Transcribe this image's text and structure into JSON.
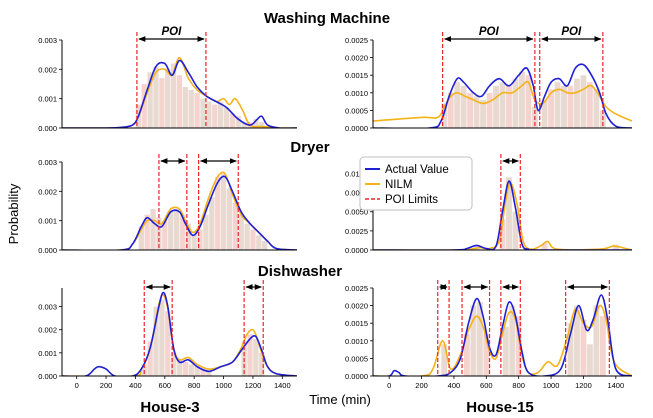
{
  "figure": {
    "row_titles": [
      "Washing Machine",
      "Dryer",
      "Dishwasher"
    ],
    "column_labels": [
      "House-3",
      "House-15"
    ],
    "xlabel": "Time (min)",
    "ylabel": "Probability",
    "poi_label": "POI",
    "legend": {
      "entries": [
        {
          "label": "Actual Value",
          "color": "#1f1fd6",
          "style": "line"
        },
        {
          "label": "NILM",
          "color": "#f5b21a",
          "style": "line"
        },
        {
          "label": "POI Limits",
          "color": "#e8262a",
          "style": "dashed"
        }
      ],
      "placement": "center, between Dryer panels"
    },
    "colors": {
      "actual": "#1f1fd6",
      "nilm": "#f5b21a",
      "poi": "#e8262a",
      "bars": "#e2cfc6",
      "bars_alt": "#f3c9c4"
    }
  },
  "chart_data": [
    {
      "type": "line",
      "title": "Washing Machine",
      "house": "House-3",
      "xlim": [
        -100,
        1500
      ],
      "ylim": [
        0,
        0.003
      ],
      "xticks": [],
      "yticks": [
        "0.000",
        "0.001",
        "0.002",
        "0.003"
      ],
      "poi": [
        [
          410,
          880
        ]
      ],
      "poi_labeled": true,
      "histogram": {
        "x": [
          420,
          460,
          500,
          540,
          580,
          620,
          660,
          700,
          740,
          780,
          820,
          860,
          900,
          940,
          980,
          1020,
          1060,
          1100,
          1140,
          1180,
          1220,
          1260
        ],
        "values": [
          0.0008,
          0.0015,
          0.0019,
          0.0021,
          0.0017,
          0.002,
          0.0022,
          0.0018,
          0.0014,
          0.0013,
          0.0012,
          0.001,
          0.0009,
          0.0008,
          0.0009,
          0.0007,
          0.0005,
          0.0004,
          0.0002,
          0.0002,
          0.0003,
          0.0002
        ]
      },
      "series": [
        {
          "name": "Actual Value",
          "x": [
            -100,
            200,
            300,
            380,
            420,
            480,
            540,
            600,
            650,
            700,
            760,
            820,
            880,
            950,
            1020,
            1100,
            1180,
            1230,
            1260,
            1300,
            1380,
            1500
          ],
          "y": [
            0,
            0,
            2e-05,
            0.0001,
            0.0004,
            0.0013,
            0.0021,
            0.0022,
            0.0018,
            0.0023,
            0.0019,
            0.0014,
            0.0011,
            0.0009,
            0.0007,
            0.0003,
            0.0001,
            0.0003,
            0.0004,
            0.0001,
            0,
            0
          ]
        },
        {
          "name": "NILM",
          "x": [
            -100,
            200,
            300,
            380,
            420,
            480,
            540,
            600,
            650,
            700,
            760,
            820,
            880,
            950,
            1000,
            1040,
            1080,
            1130,
            1180,
            1260,
            1380,
            1500
          ],
          "y": [
            0,
            0,
            2e-05,
            0.0001,
            0.0004,
            0.0012,
            0.0019,
            0.002,
            0.0018,
            0.0024,
            0.0017,
            0.0013,
            0.0011,
            0.0009,
            0.001,
            0.0008,
            0.001,
            0.0006,
            0.0001,
            5e-05,
            0,
            0
          ]
        }
      ]
    },
    {
      "type": "line",
      "title": "Washing Machine",
      "house": "House-15",
      "xlim": [
        -100,
        1500
      ],
      "ylim": [
        0,
        0.0025
      ],
      "xticks": [],
      "yticks": [
        "0.0000",
        "0.0005",
        "0.0010",
        "0.0015",
        "0.0020",
        "0.0025"
      ],
      "poi": [
        [
          330,
          900
        ],
        [
          930,
          1320
        ]
      ],
      "poi_labeled": true,
      "histogram": {
        "x": [
          340,
          380,
          420,
          460,
          500,
          540,
          580,
          620,
          660,
          700,
          740,
          780,
          820,
          860,
          900,
          960,
          1000,
          1040,
          1080,
          1120,
          1160,
          1200,
          1240,
          1280,
          1320
        ],
        "values": [
          0.0007,
          0.001,
          0.0013,
          0.0012,
          0.001,
          0.0009,
          0.0008,
          0.001,
          0.0012,
          0.0013,
          0.0012,
          0.0014,
          0.0016,
          0.0015,
          0.0006,
          0.0008,
          0.0011,
          0.0013,
          0.0012,
          0.0012,
          0.0014,
          0.0015,
          0.0013,
          0.0011,
          0.0005
        ]
      },
      "series": [
        {
          "name": "Actual Value",
          "x": [
            -100,
            250,
            320,
            370,
            420,
            460,
            520,
            570,
            620,
            680,
            740,
            800,
            850,
            890,
            920,
            960,
            1000,
            1050,
            1100,
            1150,
            1200,
            1250,
            1300,
            1340,
            1400,
            1500
          ],
          "y": [
            0,
            0,
            0.0002,
            0.0009,
            0.0014,
            0.0013,
            0.001,
            0.0009,
            0.0012,
            0.0014,
            0.0012,
            0.0015,
            0.0017,
            0.0012,
            0.0005,
            0.0009,
            0.0013,
            0.0014,
            0.0012,
            0.0017,
            0.0018,
            0.0015,
            0.001,
            0.0004,
            5e-05,
            0
          ]
        },
        {
          "name": "NILM",
          "x": [
            -100,
            200,
            300,
            340,
            380,
            420,
            470,
            520,
            580,
            640,
            700,
            760,
            820,
            860,
            900,
            950,
            1000,
            1050,
            1100,
            1150,
            1200,
            1250,
            1300,
            1340,
            1400,
            1500
          ],
          "y": [
            0.0002,
            0.0003,
            0.0003,
            0.0006,
            0.0009,
            0.001,
            0.0009,
            0.0008,
            0.0007,
            0.0008,
            0.001,
            0.001,
            0.0012,
            0.0013,
            0.0008,
            0.0007,
            0.001,
            0.0011,
            0.001,
            0.001,
            0.0011,
            0.0012,
            0.0009,
            0.0006,
            0.0004,
            0.0002
          ]
        }
      ]
    },
    {
      "type": "line",
      "title": "Dryer",
      "house": "House-3",
      "xlim": [
        -100,
        1500
      ],
      "ylim": [
        0,
        0.003
      ],
      "xticks": [],
      "yticks": [
        "0.000",
        "0.001",
        "0.002",
        "0.003"
      ],
      "poi": [
        [
          560,
          750
        ],
        [
          830,
          1100
        ]
      ],
      "poi_labeled": false,
      "histogram": {
        "x": [
          440,
          480,
          520,
          560,
          600,
          640,
          680,
          720,
          760,
          800,
          840,
          880,
          920,
          960,
          1000,
          1040,
          1080,
          1120,
          1160,
          1200,
          1240,
          1280
        ],
        "values": [
          0.0008,
          0.0012,
          0.0014,
          0.0011,
          0.001,
          0.0013,
          0.0014,
          0.0012,
          0.0009,
          0.0005,
          0.0007,
          0.0012,
          0.0018,
          0.0025,
          0.0026,
          0.0021,
          0.0016,
          0.0012,
          0.0009,
          0.0007,
          0.0005,
          0.0003
        ]
      },
      "series": [
        {
          "name": "Actual Value",
          "x": [
            -100,
            300,
            380,
            440,
            480,
            530,
            580,
            640,
            700,
            740,
            790,
            840,
            900,
            960,
            1010,
            1060,
            1120,
            1180,
            1240,
            1300,
            1360,
            1500
          ],
          "y": [
            0,
            0,
            0.0002,
            0.0008,
            0.0011,
            0.0009,
            0.0008,
            0.0013,
            0.0013,
            0.0009,
            0.0005,
            0.0008,
            0.0016,
            0.0023,
            0.0025,
            0.002,
            0.0013,
            0.0009,
            0.0006,
            0.0003,
            5e-05,
            0
          ]
        },
        {
          "name": "NILM",
          "x": [
            -100,
            300,
            380,
            440,
            480,
            530,
            580,
            640,
            700,
            740,
            790,
            840,
            900,
            960,
            1010,
            1060,
            1120,
            1180,
            1240,
            1300,
            1360,
            1500
          ],
          "y": [
            0,
            0,
            0.0002,
            0.0007,
            0.001,
            0.001,
            0.0009,
            0.0014,
            0.0014,
            0.001,
            0.0006,
            0.0009,
            0.0018,
            0.0025,
            0.0026,
            0.0019,
            0.0012,
            0.0009,
            0.0006,
            0.0003,
            5e-05,
            0
          ]
        }
      ]
    },
    {
      "type": "line",
      "title": "Dryer",
      "house": "House-15",
      "xlim": [
        -100,
        1500
      ],
      "ylim": [
        0,
        0.0115
      ],
      "xticks": [],
      "yticks": [
        "0.0000",
        "0.0025",
        "0.0050",
        "0.0075",
        "0.0100"
      ],
      "poi": [
        [
          690,
          810
        ]
      ],
      "poi_labeled": false,
      "histogram": {
        "x": [
          540,
          700,
          740,
          780,
          960,
          1400
        ],
        "values": [
          0.0005,
          0.004,
          0.0095,
          0.005,
          0.0009,
          0.0007
        ]
      },
      "series": [
        {
          "name": "Actual Value",
          "x": [
            -100,
            400,
            480,
            540,
            600,
            660,
            700,
            740,
            780,
            820,
            860,
            920,
            1500
          ],
          "y": [
            0,
            0,
            0.0002,
            0.0006,
            0.0002,
            0.0005,
            0.005,
            0.009,
            0.0055,
            0.0008,
            0.0001,
            0,
            0
          ]
        },
        {
          "name": "NILM",
          "x": [
            -100,
            400,
            500,
            560,
            620,
            680,
            720,
            750,
            790,
            830,
            880,
            940,
            980,
            1040,
            1300,
            1380,
            1420,
            1500
          ],
          "y": [
            0,
            0,
            0.0001,
            0.0003,
            0.0002,
            0.0012,
            0.0065,
            0.0088,
            0.006,
            0.001,
            0.0001,
            0.0006,
            0.0011,
            0.0001,
            0.0001,
            0.0005,
            0.0004,
            0
          ]
        }
      ]
    },
    {
      "type": "line",
      "title": "Dishwasher",
      "house": "House-3",
      "xlim": [
        -100,
        1500
      ],
      "ylim": [
        0,
        0.0038
      ],
      "xticks": [
        "0",
        "200",
        "400",
        "600",
        "800",
        "1000",
        "1200",
        "1400"
      ],
      "yticks": [
        "0.000",
        "0.001",
        "0.002",
        "0.003"
      ],
      "poi": [
        [
          460,
          650
        ],
        [
          1140,
          1270
        ]
      ],
      "poi_labeled": false,
      "histogram": {
        "x": [
          460,
          500,
          540,
          580,
          620,
          660,
          700,
          740,
          780,
          820,
          860,
          900,
          1140,
          1180,
          1220,
          1260
        ],
        "values": [
          0.0005,
          0.0015,
          0.003,
          0.0033,
          0.0028,
          0.001,
          0.0007,
          0.0006,
          0.0005,
          0.0004,
          0.0003,
          0.0003,
          0.0015,
          0.0018,
          0.0016,
          0.001
        ]
      },
      "series": [
        {
          "name": "Actual Value",
          "x": [
            -100,
            60,
            120,
            150,
            200,
            260,
            380,
            440,
            500,
            560,
            590,
            620,
            660,
            700,
            760,
            820,
            900,
            980,
            1060,
            1120,
            1180,
            1220,
            1260,
            1300,
            1360,
            1500
          ],
          "y": [
            0,
            0,
            0.0003,
            0.0004,
            0.0003,
            0,
            0,
            0.0003,
            0.0012,
            0.003,
            0.0036,
            0.003,
            0.0012,
            0.0006,
            0.0007,
            0.0004,
            0.0002,
            0.0004,
            0.0006,
            0.0011,
            0.0016,
            0.0017,
            0.0011,
            0.0004,
            0.0001,
            0
          ]
        },
        {
          "name": "NILM",
          "x": [
            -100,
            380,
            440,
            500,
            560,
            590,
            620,
            660,
            700,
            760,
            820,
            900,
            980,
            1060,
            1120,
            1160,
            1200,
            1230,
            1260,
            1300,
            1360,
            1500
          ],
          "y": [
            0,
            0,
            0.0003,
            0.0012,
            0.0031,
            0.0035,
            0.0029,
            0.0012,
            0.0007,
            0.0008,
            0.0005,
            0.0003,
            0.0004,
            0.0006,
            0.0012,
            0.0018,
            0.002,
            0.0016,
            0.001,
            0.0004,
            0.0001,
            0
          ]
        }
      ]
    },
    {
      "type": "line",
      "title": "Dishwasher",
      "house": "House-15",
      "xlim": [
        -100,
        1500
      ],
      "ylim": [
        0,
        0.0025
      ],
      "xticks": [
        "0",
        "200",
        "400",
        "600",
        "800",
        "1000",
        "1200",
        "1400"
      ],
      "yticks": [
        "0.0000",
        "0.0005",
        "0.0010",
        "0.0015",
        "0.0020",
        "0.0025"
      ],
      "poi": [
        [
          300,
          370
        ],
        [
          450,
          620
        ],
        [
          690,
          810
        ],
        [
          1090,
          1360
        ]
      ],
      "poi_labeled": false,
      "histogram": {
        "x": [
          340,
          480,
          520,
          560,
          600,
          720,
          760,
          800,
          1120,
          1160,
          1200,
          1240,
          1280,
          1320
        ],
        "values": [
          0.0009,
          0.0012,
          0.002,
          0.0021,
          0.0012,
          0.0014,
          0.002,
          0.0017,
          0.0015,
          0.002,
          0.0016,
          0.0009,
          0.002,
          0.0017
        ]
      },
      "series": [
        {
          "name": "Actual Value",
          "x": [
            -100,
            0,
            30,
            60,
            100,
            300,
            380,
            440,
            490,
            540,
            580,
            620,
            660,
            700,
            740,
            780,
            820,
            860,
            960,
            1060,
            1120,
            1170,
            1220,
            1260,
            1310,
            1350,
            1400,
            1500
          ],
          "y": [
            0,
            0,
            0.00015,
            0.0001,
            0,
            0,
            0.0001,
            0.0005,
            0.0015,
            0.0022,
            0.0017,
            0.0008,
            0.0006,
            0.0014,
            0.0021,
            0.0017,
            0.0007,
            0.0001,
            0,
            0.0002,
            0.0012,
            0.002,
            0.0013,
            0.0016,
            0.0023,
            0.0016,
            0.0002,
            0
          ]
        },
        {
          "name": "NILM",
          "x": [
            -100,
            200,
            270,
            330,
            380,
            440,
            490,
            540,
            580,
            620,
            660,
            700,
            740,
            780,
            820,
            860,
            920,
            980,
            1040,
            1100,
            1150,
            1200,
            1250,
            1300,
            1340,
            1390,
            1500
          ],
          "y": [
            0,
            0,
            0.0002,
            0.001,
            0.0002,
            0.0006,
            0.0013,
            0.0017,
            0.0014,
            0.0007,
            0.0005,
            0.0012,
            0.0018,
            0.0016,
            0.0006,
            0.0001,
            0.0001,
            0.0004,
            0.0003,
            0.0011,
            0.0019,
            0.0015,
            0.0014,
            0.002,
            0.0016,
            0.0004,
            0
          ]
        }
      ]
    }
  ]
}
